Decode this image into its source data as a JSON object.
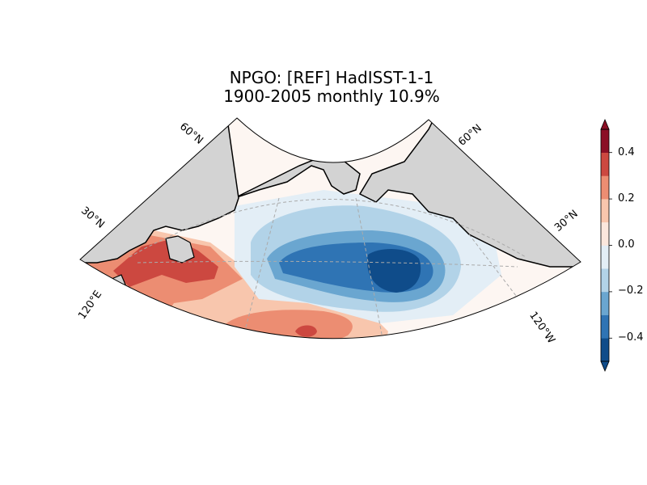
{
  "title": {
    "line1": "NPGO: [REF] HadISST-1-1",
    "line2": "1900-2005 monthly 10.9%"
  },
  "map": {
    "projection": "conic",
    "land_color": "#d3d3d3",
    "coastline_color": "#000000",
    "gridline_style": "dashed",
    "lat_labels": [
      "60°N",
      "30°N",
      "60°N",
      "30°N"
    ],
    "lon_labels": [
      "120°E",
      "120°W"
    ]
  },
  "colorbar": {
    "ticks": [
      "0.4",
      "0.2",
      "0.0",
      "−0.2",
      "−0.4"
    ],
    "range": [
      -0.5,
      0.5
    ],
    "extend": "both",
    "colormap": "RdBu_r",
    "colors": [
      "#0f4c8a",
      "#2f74b4",
      "#6aa6d0",
      "#b2d3e8",
      "#e3eef6",
      "#fbe7dd",
      "#f8c6ad",
      "#ec8d72",
      "#cc4840",
      "#8b0f25"
    ]
  }
}
